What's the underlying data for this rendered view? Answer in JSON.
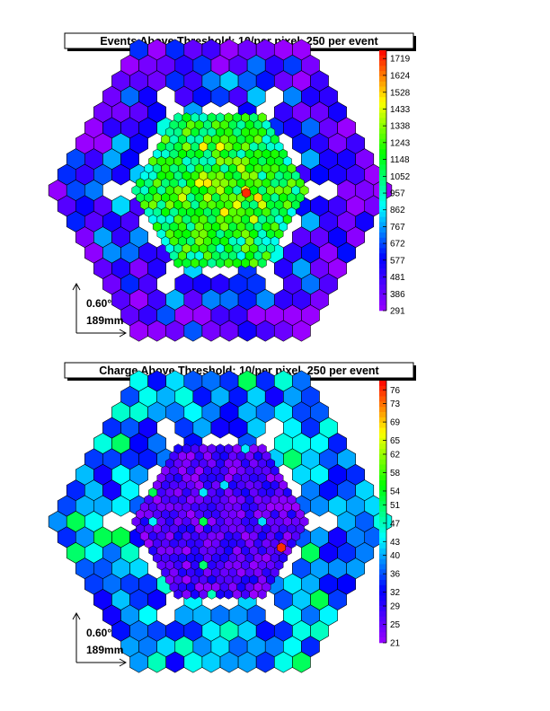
{
  "chart_data": [
    {
      "type": "heatmap",
      "title": "Events Above Threshold: 10/per pixel, 250 per event",
      "colorbar": {
        "ticks": [
          1719,
          1624,
          1528,
          1433,
          1338,
          1243,
          1148,
          1052,
          957,
          862,
          767,
          672,
          577,
          481,
          386,
          291
        ],
        "min": 291,
        "max": 1766,
        "palette": [
          "#9900ff",
          "#0000ff",
          "#00ffff",
          "#00ff00",
          "#ffff00",
          "#ff0000"
        ]
      },
      "outer_ring_values": [
        480,
        560,
        620,
        700,
        800,
        900
      ],
      "inner_region_values": [
        1050,
        1150,
        1250,
        1350
      ],
      "peak_value": 1719,
      "scale_bar": {
        "angle_label": "0.60°",
        "length_label": "189mm"
      }
    },
    {
      "type": "heatmap",
      "title": "Charge Above Threshold: 10/per pixel, 250 per event",
      "colorbar": {
        "ticks": [
          76,
          73,
          69,
          65,
          62,
          58,
          54,
          51,
          47,
          43,
          40,
          36,
          32,
          29,
          25,
          21
        ],
        "min": 21,
        "max": 78,
        "palette": [
          "#9900ff",
          "#0000ff",
          "#00ffff",
          "#00ff00",
          "#ffff00",
          "#ff0000"
        ]
      },
      "outer_ring_values": [
        33,
        36,
        38,
        40,
        42,
        45
      ],
      "inner_region_values": [
        22,
        24,
        26,
        28,
        30
      ],
      "peak_value": 76,
      "scale_bar": {
        "angle_label": "0.60°",
        "length_label": "189mm"
      }
    }
  ]
}
